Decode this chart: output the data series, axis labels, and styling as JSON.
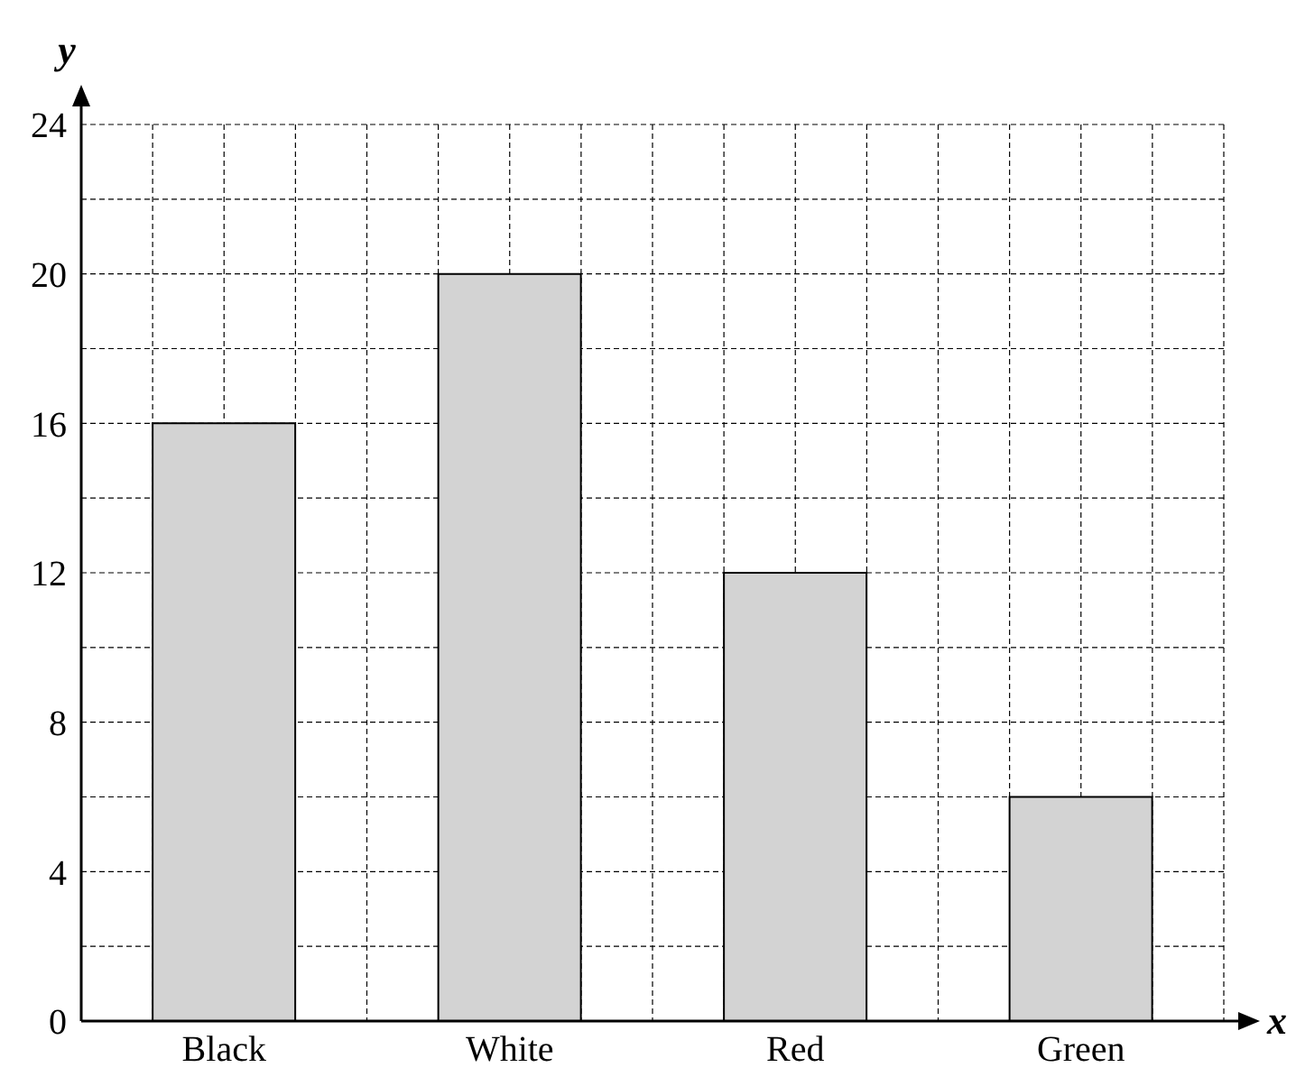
{
  "chart_data": {
    "type": "bar",
    "xlabel": "x",
    "ylabel": "y",
    "categories": [
      "Black",
      "White",
      "Red",
      "Green"
    ],
    "values": [
      16,
      20,
      12,
      6
    ],
    "color": "#d3d3d3",
    "ylim": [
      0,
      24
    ],
    "yticks": [
      0,
      4,
      8,
      12,
      16,
      20,
      24
    ],
    "grid": true,
    "line_style": "dashed"
  }
}
